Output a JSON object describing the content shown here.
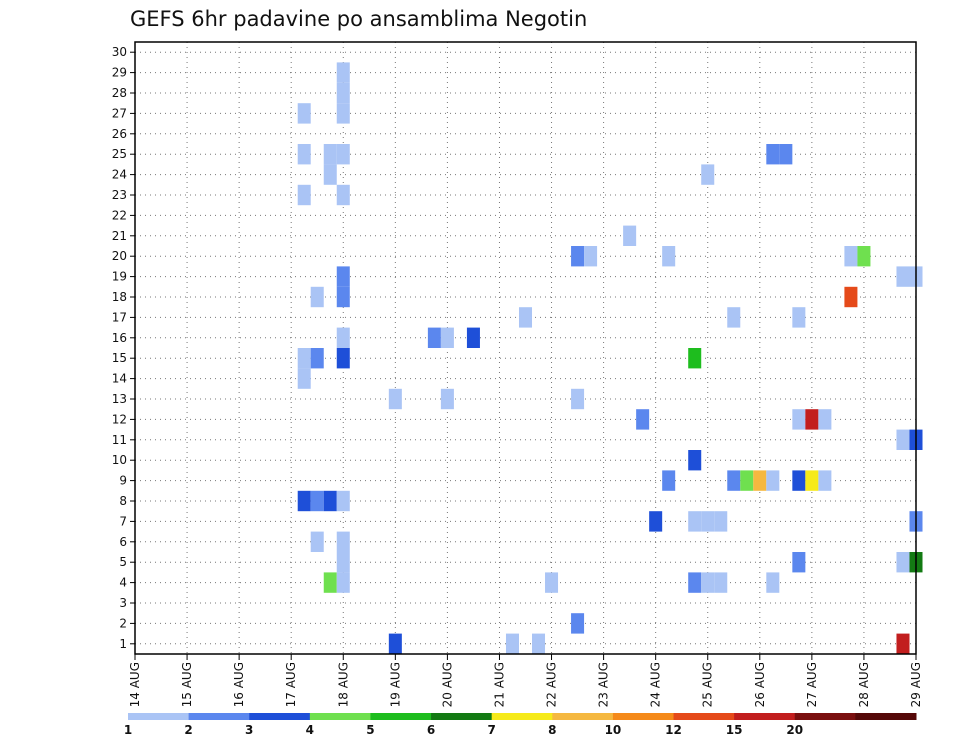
{
  "chart_data": {
    "type": "heatmap",
    "title": "GEFS 6hr padavine po ansamblima Negotin",
    "xlabel": "",
    "ylabel": "",
    "x_tick_labels": [
      "14 AUG",
      "15 AUG",
      "16 AUG",
      "17 AUG",
      "18 AUG",
      "19 AUG",
      "20 AUG",
      "21 AUG",
      "22 AUG",
      "23 AUG",
      "24 AUG",
      "25 AUG",
      "26 AUG",
      "27 AUG",
      "28 AUG",
      "29 AUG"
    ],
    "y_tick_labels": [
      "1",
      "2",
      "3",
      "4",
      "5",
      "6",
      "7",
      "8",
      "9",
      "10",
      "11",
      "12",
      "13",
      "14",
      "15",
      "16",
      "17",
      "18",
      "19",
      "20",
      "21",
      "22",
      "23",
      "24",
      "25",
      "26",
      "27",
      "28",
      "29",
      "30"
    ],
    "xlim_days": [
      14,
      29
    ],
    "ylim": [
      0.5,
      30.5
    ],
    "grid": true,
    "colorbar": {
      "labels": [
        "1",
        "2",
        "3",
        "4",
        "5",
        "6",
        "7",
        "8",
        "10",
        "12",
        "15",
        "20"
      ],
      "colors": [
        "#aac4f5",
        "#5b87ee",
        "#1e4fd8",
        "#6fe04f",
        "#1ebd1e",
        "#137a13",
        "#f6ea1a",
        "#f5b840",
        "#f58a1a",
        "#e54a1a",
        "#c21e1e",
        "#7a0f0f",
        "#550808"
      ]
    },
    "points": [
      [
        17.25,
        14,
        0
      ],
      [
        17.25,
        15,
        0
      ],
      [
        17.25,
        23,
        0
      ],
      [
        17.25,
        25,
        0
      ],
      [
        17.25,
        27,
        0
      ],
      [
        17.25,
        8,
        2
      ],
      [
        17.5,
        8,
        1
      ],
      [
        17.5,
        15,
        1
      ],
      [
        17.5,
        18,
        0
      ],
      [
        17.5,
        6,
        0
      ],
      [
        17.75,
        8,
        2
      ],
      [
        17.75,
        4,
        3
      ],
      [
        17.75,
        24,
        0
      ],
      [
        17.75,
        25,
        0
      ],
      [
        18.0,
        4,
        0
      ],
      [
        18.0,
        5,
        0
      ],
      [
        18.0,
        6,
        0
      ],
      [
        18.0,
        8,
        0
      ],
      [
        18.0,
        15,
        2
      ],
      [
        18.0,
        16,
        0
      ],
      [
        18.0,
        18,
        1
      ],
      [
        18.0,
        19,
        1
      ],
      [
        18.0,
        23,
        0
      ],
      [
        18.0,
        25,
        0
      ],
      [
        18.0,
        27,
        0
      ],
      [
        18.0,
        28,
        0
      ],
      [
        18.0,
        29,
        0
      ],
      [
        19.0,
        1,
        2
      ],
      [
        19.0,
        13,
        0
      ],
      [
        19.75,
        16,
        1
      ],
      [
        20.0,
        16,
        0
      ],
      [
        20.0,
        13,
        0
      ],
      [
        20.5,
        16,
        2
      ],
      [
        21.25,
        1,
        0
      ],
      [
        21.5,
        17,
        0
      ],
      [
        21.75,
        1,
        0
      ],
      [
        22.0,
        4,
        0
      ],
      [
        22.5,
        20,
        1
      ],
      [
        22.5,
        13,
        0
      ],
      [
        22.5,
        2,
        1
      ],
      [
        22.75,
        20,
        0
      ],
      [
        23.5,
        21,
        0
      ],
      [
        23.75,
        12,
        1
      ],
      [
        24.0,
        7,
        2
      ],
      [
        24.25,
        9,
        1
      ],
      [
        24.25,
        20,
        0
      ],
      [
        24.75,
        15,
        4
      ],
      [
        24.75,
        10,
        2
      ],
      [
        24.75,
        4,
        1
      ],
      [
        24.75,
        7,
        0
      ],
      [
        25.0,
        7,
        0
      ],
      [
        25.0,
        24,
        0
      ],
      [
        25.0,
        4,
        0
      ],
      [
        25.25,
        7,
        0
      ],
      [
        25.25,
        4,
        0
      ],
      [
        25.5,
        9,
        1
      ],
      [
        25.5,
        17,
        0
      ],
      [
        25.75,
        9,
        3
      ],
      [
        26.0,
        9,
        7
      ],
      [
        26.25,
        9,
        0
      ],
      [
        26.25,
        4,
        0
      ],
      [
        26.25,
        25,
        1
      ],
      [
        26.5,
        25,
        1
      ],
      [
        26.75,
        9,
        2
      ],
      [
        26.75,
        12,
        0
      ],
      [
        26.75,
        17,
        0
      ],
      [
        26.75,
        5,
        1
      ],
      [
        27.0,
        9,
        6
      ],
      [
        27.0,
        12,
        10
      ],
      [
        27.25,
        9,
        0
      ],
      [
        27.25,
        12,
        0
      ],
      [
        27.75,
        18,
        9
      ],
      [
        27.75,
        20,
        0
      ],
      [
        28.0,
        20,
        3
      ],
      [
        28.75,
        1,
        10
      ],
      [
        28.75,
        19,
        0
      ],
      [
        28.75,
        11,
        0
      ],
      [
        28.75,
        5,
        0
      ],
      [
        29.0,
        19,
        0
      ],
      [
        29.0,
        11,
        2
      ],
      [
        29.0,
        7,
        1
      ],
      [
        29.0,
        5,
        5
      ]
    ]
  }
}
